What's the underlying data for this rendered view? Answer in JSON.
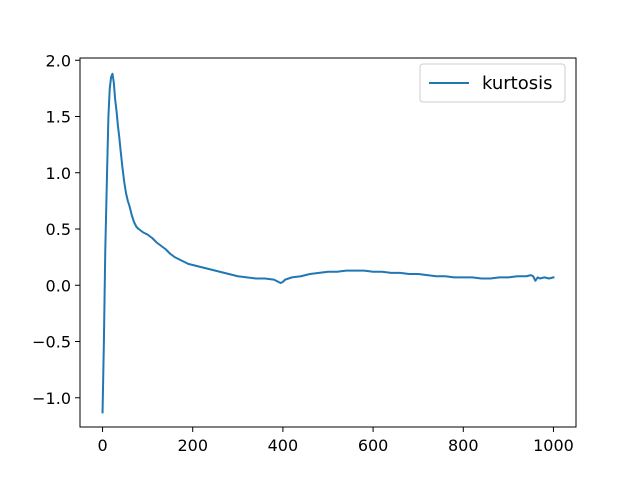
{
  "chart_data": {
    "type": "line",
    "title": "",
    "xlabel": "",
    "ylabel": "",
    "xlim": [
      -50,
      1050
    ],
    "ylim": [
      -1.26,
      2.02
    ],
    "xticks": [
      0,
      200,
      400,
      600,
      800,
      1000
    ],
    "xtick_labels": [
      "0",
      "200",
      "400",
      "600",
      "800",
      "1000"
    ],
    "yticks": [
      -1.0,
      -0.5,
      0.0,
      0.5,
      1.0,
      1.5,
      2.0
    ],
    "ytick_labels": [
      "−1.0",
      "−0.5",
      "0.0",
      "0.5",
      "1.0",
      "1.5",
      "2.0"
    ],
    "grid": false,
    "legend_position": "upper right",
    "series": [
      {
        "name": "kurtosis",
        "color": "#1f77b4",
        "x": [
          0,
          3,
          6,
          10,
          13,
          16,
          19,
          22,
          25,
          28,
          31,
          34,
          37,
          40,
          44,
          48,
          52,
          56,
          60,
          65,
          70,
          75,
          80,
          90,
          100,
          110,
          120,
          130,
          140,
          150,
          160,
          170,
          180,
          190,
          200,
          220,
          240,
          260,
          280,
          300,
          320,
          340,
          360,
          380,
          395,
          400,
          405,
          420,
          440,
          460,
          480,
          500,
          520,
          540,
          560,
          580,
          600,
          620,
          640,
          660,
          680,
          700,
          720,
          740,
          760,
          780,
          800,
          820,
          840,
          860,
          880,
          900,
          920,
          940,
          950,
          955,
          960,
          965,
          970,
          980,
          990,
          1000
        ],
        "y": [
          -1.13,
          -0.5,
          0.3,
          1.0,
          1.5,
          1.75,
          1.85,
          1.88,
          1.8,
          1.65,
          1.55,
          1.42,
          1.32,
          1.2,
          1.05,
          0.92,
          0.82,
          0.75,
          0.7,
          0.62,
          0.56,
          0.52,
          0.5,
          0.47,
          0.45,
          0.42,
          0.38,
          0.35,
          0.32,
          0.28,
          0.25,
          0.23,
          0.21,
          0.19,
          0.18,
          0.16,
          0.14,
          0.12,
          0.1,
          0.08,
          0.07,
          0.06,
          0.06,
          0.05,
          0.02,
          0.03,
          0.05,
          0.07,
          0.08,
          0.1,
          0.11,
          0.12,
          0.12,
          0.13,
          0.13,
          0.13,
          0.12,
          0.12,
          0.11,
          0.11,
          0.1,
          0.1,
          0.09,
          0.08,
          0.08,
          0.07,
          0.07,
          0.07,
          0.06,
          0.06,
          0.07,
          0.07,
          0.08,
          0.08,
          0.09,
          0.08,
          0.04,
          0.07,
          0.06,
          0.07,
          0.06,
          0.07
        ]
      }
    ]
  }
}
